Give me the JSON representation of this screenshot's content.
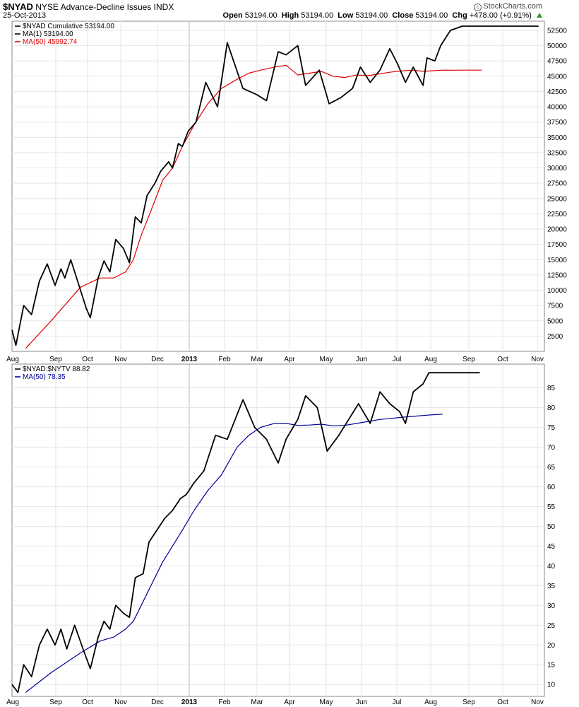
{
  "header": {
    "symbol": "$NYAD",
    "name": "NYSE Advance-Decline Issues",
    "exchange": "INDX",
    "date": "25-Oct-2013",
    "credit": "StockCharts.com",
    "ohlc": {
      "open_label": "Open",
      "open": "53194.00",
      "high_label": "High",
      "high": "53194.00",
      "low_label": "Low",
      "low": "53194.00",
      "close_label": "Close",
      "close": "53194.00",
      "chg_label": "Chg",
      "chg": "+478.00 (+0.91%)"
    }
  },
  "colors": {
    "price": "#000000",
    "ma_top": "#e00000",
    "ma_bottom": "#000099",
    "grid": "#e6e6e6",
    "axis": "#888888"
  },
  "chart_data": [
    {
      "type": "line",
      "panel": "top",
      "legend": [
        {
          "label": "$NYAD  Cumulative 53194.00",
          "color": "#000000"
        },
        {
          "label": "MA(1) 53194.00",
          "color": "#000000"
        },
        {
          "label": "MA(50) 45992.74",
          "color": "#e00000"
        }
      ],
      "ylim": [
        0,
        54000
      ],
      "yticks": [
        2500,
        5000,
        7500,
        10000,
        12500,
        15000,
        17500,
        20000,
        22500,
        25000,
        27500,
        30000,
        32500,
        35000,
        37500,
        40000,
        42500,
        45000,
        47500,
        50000,
        52500
      ],
      "x_labels": [
        "Aug",
        "Sep",
        "Oct",
        "Nov",
        "Dec",
        "2013",
        "Feb",
        "Mar",
        "Apr",
        "May",
        "Jun",
        "Jul",
        "Aug",
        "Sep",
        "Oct",
        "Nov"
      ],
      "series": [
        {
          "name": "$NYAD",
          "color": "#000000",
          "x": [
            0,
            2,
            6,
            10,
            14,
            18,
            22,
            25,
            27,
            30,
            35,
            38,
            40,
            44,
            47,
            50,
            53,
            57,
            60,
            63,
            66,
            69,
            73,
            76,
            80,
            82,
            85,
            87,
            90,
            94,
            99,
            105,
            110,
            118,
            125,
            130,
            136,
            140,
            146,
            150,
            157,
            162,
            168,
            174,
            178,
            183,
            188,
            193,
            197,
            201,
            205,
            210,
            212,
            216,
            219,
            224,
            230,
            234,
            238,
            243,
            246,
            249,
            252,
            255,
            258,
            262,
            265,
            269
          ],
          "y": [
            3500,
            1000,
            7500,
            6000,
            11500,
            14300,
            10800,
            13500,
            12000,
            15000,
            10000,
            7000,
            5500,
            12000,
            14800,
            13000,
            18300,
            16800,
            14500,
            22000,
            21000,
            25500,
            27500,
            29500,
            31000,
            30000,
            34000,
            33500,
            36000,
            37500,
            44000,
            40000,
            50500,
            43000,
            42000,
            41000,
            49000,
            48500,
            50000,
            43500,
            46000,
            40500,
            41500,
            43000,
            46500,
            44000,
            46000,
            49500,
            47000,
            44000,
            46500,
            43500,
            48000,
            47500,
            50000,
            52500,
            53194,
            53194,
            53194,
            53194,
            53194,
            53194,
            53194,
            53194,
            53194,
            53194,
            53194,
            53194
          ]
        },
        {
          "name": "MA(50)",
          "color": "#e00000",
          "x": [
            7,
            20,
            35,
            45,
            52,
            58,
            62,
            66,
            71,
            77,
            82,
            87,
            93,
            100,
            107,
            115,
            121,
            127,
            134,
            140,
            146,
            152,
            158,
            164,
            170,
            176,
            182,
            188,
            194,
            200,
            205,
            210,
            215,
            220,
            225,
            230,
            235,
            240
          ],
          "y": [
            500,
            5000,
            10500,
            12000,
            12000,
            13000,
            15000,
            19000,
            23000,
            28000,
            30000,
            33500,
            37000,
            40500,
            43000,
            44500,
            45500,
            46000,
            46500,
            46800,
            45200,
            45500,
            45800,
            45000,
            44800,
            45200,
            45100,
            45400,
            45700,
            45900,
            46000,
            45800,
            45900,
            45995,
            45992,
            45993,
            45992.74,
            45992.74
          ]
        }
      ]
    },
    {
      "type": "line",
      "panel": "bottom",
      "legend": [
        {
          "label": "$NYAD:$NYTV  88.82",
          "color": "#000000"
        },
        {
          "label": "MA(50) 78.35",
          "color": "#000099"
        }
      ],
      "ylim": [
        7,
        91
      ],
      "yticks": [
        10,
        15,
        20,
        25,
        30,
        35,
        40,
        45,
        50,
        55,
        60,
        65,
        70,
        75,
        80,
        85
      ],
      "x_labels": [
        "Aug",
        "Sep",
        "Oct",
        "Nov",
        "Dec",
        "2013",
        "Feb",
        "Mar",
        "Apr",
        "May",
        "Jun",
        "Jul",
        "Aug",
        "Sep",
        "Oct",
        "Nov"
      ],
      "series": [
        {
          "name": "$NYAD:$NYTV",
          "color": "#000000",
          "x": [
            0,
            3,
            6,
            10,
            14,
            18,
            22,
            25,
            28,
            32,
            37,
            40,
            44,
            47,
            50,
            53,
            57,
            60,
            63,
            67,
            70,
            74,
            78,
            82,
            86,
            89,
            93,
            98,
            104,
            110,
            118,
            124,
            130,
            136,
            140,
            146,
            150,
            156,
            161,
            167,
            172,
            177,
            183,
            188,
            193,
            198,
            201,
            205,
            210,
            213,
            216,
            219,
            223,
            228,
            234,
            239
          ],
          "y": [
            10,
            8,
            15,
            12,
            20,
            24,
            20,
            24,
            19,
            25,
            18,
            14,
            22,
            26,
            24,
            30,
            28,
            27,
            37,
            38,
            46,
            49,
            52,
            54,
            57,
            58,
            61,
            64,
            73,
            72,
            82,
            75,
            72,
            66,
            72,
            77,
            83,
            80,
            69,
            73,
            77,
            81,
            76,
            84,
            81,
            79,
            76,
            84,
            86,
            88.82,
            88.82,
            88.82,
            88.82,
            88.82,
            88.82,
            88.82
          ]
        },
        {
          "name": "MA(50)",
          "color": "#000099",
          "x": [
            7,
            20,
            35,
            45,
            52,
            58,
            62,
            66,
            71,
            77,
            82,
            87,
            93,
            100,
            107,
            115,
            121,
            127,
            134,
            140,
            146,
            152,
            158,
            164,
            170,
            176,
            182,
            188,
            194,
            200,
            205,
            210,
            215,
            220
          ],
          "y": [
            8,
            13,
            18,
            21,
            22,
            24,
            26,
            30,
            35,
            41,
            45,
            49,
            54,
            59,
            63,
            70,
            73,
            75,
            76,
            76,
            75.5,
            75.6,
            75.8,
            75.4,
            75.5,
            76,
            76.5,
            77,
            77.3,
            77.6,
            77.8,
            78,
            78.2,
            78.35
          ]
        }
      ]
    }
  ]
}
